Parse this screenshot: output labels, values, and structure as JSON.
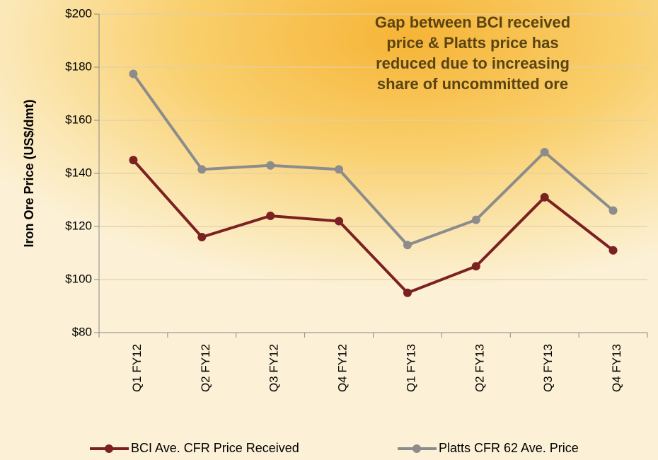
{
  "chart_data": {
    "type": "line",
    "y_label": "Iron Ore Price (US$/dmt)",
    "annotation": [
      "Gap between BCI received",
      "price & Platts price has",
      "reduced due to increasing",
      "share of uncommitted ore"
    ],
    "categories": [
      "Q1 FY12",
      "Q2 FY12",
      "Q3 FY12",
      "Q4 FY12",
      "Q1 FY13",
      "Q2 FY13",
      "Q3 FY13",
      "Q4 FY13"
    ],
    "series": [
      {
        "name": "BCI Ave. CFR Price Received",
        "color": "#7b2121",
        "values": [
          145,
          116,
          124,
          122,
          95,
          105,
          131,
          111
        ]
      },
      {
        "name": "Platts CFR 62 Ave. Price",
        "color": "#8c8c8c",
        "values": [
          177.5,
          141.5,
          143,
          141.5,
          113,
          122.5,
          148,
          126
        ]
      }
    ],
    "ylim": [
      80,
      200
    ],
    "yticks": [
      {
        "value": 80,
        "label": "$80"
      },
      {
        "value": 100,
        "label": "$100"
      },
      {
        "value": 120,
        "label": "$120"
      },
      {
        "value": 140,
        "label": "$140"
      },
      {
        "value": 160,
        "label": "$160"
      },
      {
        "value": 180,
        "label": "$180"
      },
      {
        "value": 200,
        "label": "$200"
      }
    ],
    "grid": true,
    "legend": "bottom"
  }
}
